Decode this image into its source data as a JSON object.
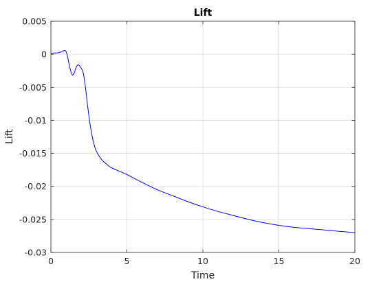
{
  "chart_data": {
    "type": "line",
    "title": "Lift",
    "xlabel": "Time",
    "ylabel": "Lift",
    "xlim": [
      0,
      20
    ],
    "ylim": [
      -0.03,
      0.005
    ],
    "xticks": [
      0,
      5,
      10,
      15,
      20
    ],
    "xtick_labels": [
      "0",
      "5",
      "10",
      "15",
      "20"
    ],
    "yticks": [
      0.005,
      0,
      -0.005,
      -0.01,
      -0.015,
      -0.02,
      -0.025,
      -0.03
    ],
    "ytick_labels": [
      "0.005",
      "0",
      "-0.005",
      "-0.01",
      "-0.015",
      "-0.02",
      "-0.025",
      "-0.03"
    ],
    "grid": true,
    "series": [
      {
        "name": "Lift",
        "color": "#0000ff",
        "x": [
          0,
          0.2,
          0.4,
          0.6,
          0.8,
          0.9,
          1.0,
          1.1,
          1.2,
          1.3,
          1.4,
          1.5,
          1.6,
          1.7,
          1.8,
          1.9,
          2.0,
          2.1,
          2.2,
          2.3,
          2.4,
          2.5,
          2.6,
          2.7,
          2.8,
          2.9,
          3.0,
          3.2,
          3.4,
          3.6,
          3.8,
          4.0,
          4.5,
          5.0,
          6.0,
          7.0,
          8.0,
          9.0,
          10.0,
          11.0,
          12.0,
          13.0,
          14.0,
          15.0,
          16.0,
          17.0,
          18.0,
          19.0,
          20.0
        ],
        "values": [
          0.0001,
          0.0002,
          0.0002,
          0.0003,
          0.0005,
          0.0006,
          0.0004,
          -0.0004,
          -0.0015,
          -0.0025,
          -0.0031,
          -0.003,
          -0.0024,
          -0.0018,
          -0.0016,
          -0.0018,
          -0.0021,
          -0.0026,
          -0.0037,
          -0.0055,
          -0.0075,
          -0.0093,
          -0.0109,
          -0.0122,
          -0.0133,
          -0.0141,
          -0.0147,
          -0.0155,
          -0.0161,
          -0.0165,
          -0.0169,
          -0.0172,
          -0.0177,
          -0.0182,
          -0.0194,
          -0.0205,
          -0.0214,
          -0.0223,
          -0.0231,
          -0.0238,
          -0.0244,
          -0.025,
          -0.0255,
          -0.0259,
          -0.0262,
          -0.0264,
          -0.0266,
          -0.0268,
          -0.027
        ]
      }
    ]
  }
}
